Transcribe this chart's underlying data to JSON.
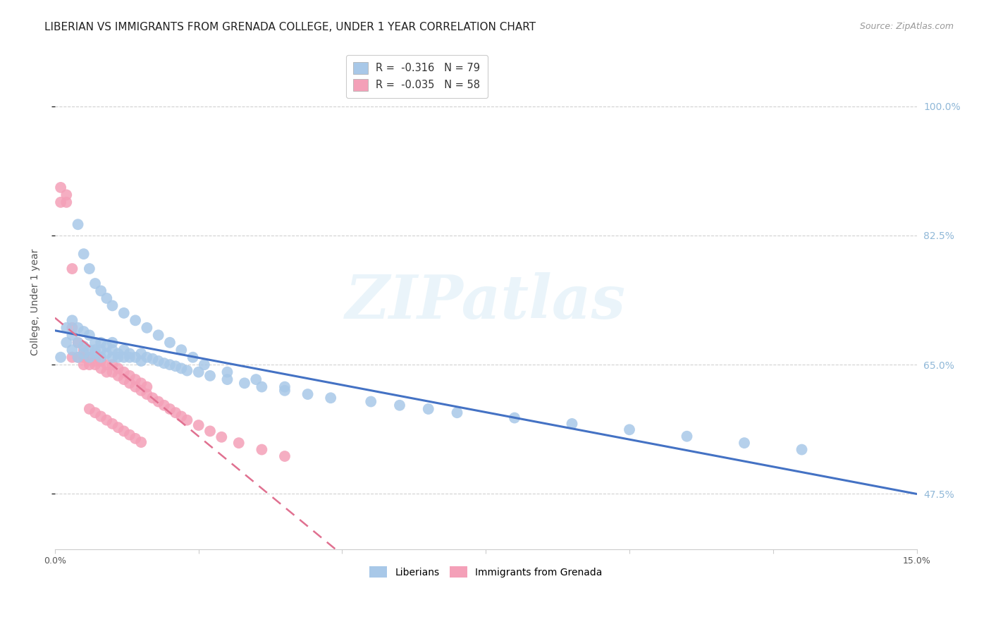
{
  "title": "LIBERIAN VS IMMIGRANTS FROM GRENADA COLLEGE, UNDER 1 YEAR CORRELATION CHART",
  "source": "Source: ZipAtlas.com",
  "ylabel": "College, Under 1 year",
  "ytick_values": [
    47.5,
    65.0,
    82.5,
    100.0
  ],
  "xlim": [
    0.0,
    0.15
  ],
  "ylim": [
    0.4,
    1.07
  ],
  "watermark": "ZIPatlas",
  "legend_line1": "R =  -0.316   N = 79",
  "legend_line2": "R =  -0.035   N = 58",
  "legend_r1": "-0.316",
  "legend_n1": "79",
  "legend_r2": "-0.035",
  "legend_n2": "58",
  "liberian_color": "#a8c8e8",
  "grenada_color": "#f4a0b8",
  "liberian_line_color": "#4472c4",
  "grenada_line_color": "#e07090",
  "background_color": "#ffffff",
  "grid_color": "#cccccc",
  "right_axis_color": "#90b8d8",
  "title_fontsize": 11,
  "axis_label_fontsize": 10,
  "tick_fontsize": 9,
  "source_fontsize": 9,
  "liberian_x": [
    0.001,
    0.002,
    0.002,
    0.003,
    0.003,
    0.003,
    0.004,
    0.004,
    0.004,
    0.005,
    0.005,
    0.005,
    0.006,
    0.006,
    0.006,
    0.007,
    0.007,
    0.007,
    0.008,
    0.008,
    0.008,
    0.009,
    0.009,
    0.01,
    0.01,
    0.01,
    0.011,
    0.011,
    0.012,
    0.012,
    0.013,
    0.013,
    0.014,
    0.015,
    0.015,
    0.016,
    0.017,
    0.018,
    0.019,
    0.02,
    0.021,
    0.022,
    0.023,
    0.025,
    0.027,
    0.03,
    0.033,
    0.036,
    0.04,
    0.044,
    0.048,
    0.055,
    0.06,
    0.065,
    0.07,
    0.08,
    0.09,
    0.1,
    0.11,
    0.12,
    0.13,
    0.004,
    0.005,
    0.006,
    0.007,
    0.008,
    0.009,
    0.01,
    0.012,
    0.014,
    0.016,
    0.018,
    0.02,
    0.022,
    0.024,
    0.026,
    0.03,
    0.035,
    0.04
  ],
  "liberian_y": [
    0.66,
    0.68,
    0.7,
    0.67,
    0.69,
    0.71,
    0.66,
    0.68,
    0.7,
    0.665,
    0.675,
    0.695,
    0.66,
    0.67,
    0.69,
    0.665,
    0.67,
    0.68,
    0.66,
    0.67,
    0.68,
    0.665,
    0.675,
    0.66,
    0.67,
    0.68,
    0.66,
    0.665,
    0.67,
    0.66,
    0.66,
    0.665,
    0.66,
    0.655,
    0.665,
    0.66,
    0.658,
    0.655,
    0.652,
    0.65,
    0.648,
    0.645,
    0.642,
    0.64,
    0.635,
    0.63,
    0.625,
    0.62,
    0.615,
    0.61,
    0.605,
    0.6,
    0.595,
    0.59,
    0.585,
    0.578,
    0.57,
    0.562,
    0.553,
    0.544,
    0.535,
    0.84,
    0.8,
    0.78,
    0.76,
    0.75,
    0.74,
    0.73,
    0.72,
    0.71,
    0.7,
    0.69,
    0.68,
    0.67,
    0.66,
    0.65,
    0.64,
    0.63,
    0.62
  ],
  "grenada_x": [
    0.001,
    0.001,
    0.002,
    0.002,
    0.003,
    0.003,
    0.003,
    0.004,
    0.004,
    0.005,
    0.005,
    0.005,
    0.006,
    0.006,
    0.007,
    0.007,
    0.008,
    0.008,
    0.009,
    0.009,
    0.01,
    0.01,
    0.011,
    0.011,
    0.012,
    0.012,
    0.013,
    0.013,
    0.014,
    0.014,
    0.015,
    0.015,
    0.016,
    0.016,
    0.017,
    0.018,
    0.019,
    0.02,
    0.021,
    0.022,
    0.023,
    0.025,
    0.027,
    0.029,
    0.032,
    0.036,
    0.04,
    0.006,
    0.007,
    0.008,
    0.009,
    0.01,
    0.011,
    0.012,
    0.013,
    0.014,
    0.015
  ],
  "grenada_y": [
    0.87,
    0.89,
    0.87,
    0.88,
    0.78,
    0.66,
    0.7,
    0.66,
    0.68,
    0.65,
    0.66,
    0.67,
    0.65,
    0.66,
    0.65,
    0.655,
    0.645,
    0.655,
    0.64,
    0.65,
    0.64,
    0.65,
    0.635,
    0.645,
    0.63,
    0.64,
    0.625,
    0.635,
    0.62,
    0.63,
    0.615,
    0.625,
    0.61,
    0.62,
    0.605,
    0.6,
    0.595,
    0.59,
    0.585,
    0.58,
    0.575,
    0.568,
    0.56,
    0.552,
    0.544,
    0.535,
    0.526,
    0.59,
    0.585,
    0.58,
    0.575,
    0.57,
    0.565,
    0.56,
    0.555,
    0.55,
    0.545
  ]
}
